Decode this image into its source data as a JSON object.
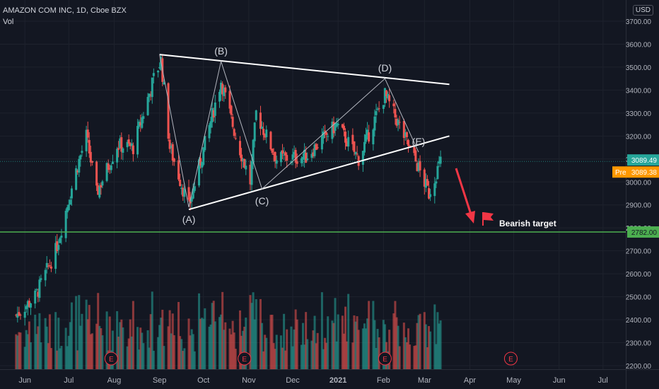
{
  "header": {
    "symbol": "AMAZON COM INC, 1D, Cboe BZX",
    "volume_label": "Vol",
    "currency": "USD"
  },
  "chart_data": {
    "type": "candlestick",
    "title": "AMAZON COM INC, 1D, Cboe BZX",
    "currency": "USD",
    "ylim": [
      2180,
      3760
    ],
    "y_ticks": [
      2200,
      2300,
      2400,
      2500,
      2600,
      2700,
      2800,
      2900,
      3000,
      3100,
      3200,
      3300,
      3400,
      3500,
      3600,
      3700
    ],
    "x_ticks": [
      "Jun",
      "Jul",
      "Aug",
      "Sep",
      "Oct",
      "Nov",
      "Dec",
      "2021",
      "Feb",
      "Mar",
      "Apr",
      "May",
      "Jun",
      "Jul"
    ],
    "grid": true,
    "price_anchors": [
      {
        "date": "2020-05-26",
        "price": 2420
      },
      {
        "date": "2020-06-08",
        "price": 2500
      },
      {
        "date": "2020-06-22",
        "price": 2700
      },
      {
        "date": "2020-07-06",
        "price": 3050
      },
      {
        "date": "2020-07-13",
        "price": 3200
      },
      {
        "date": "2020-07-20",
        "price": 2950
      },
      {
        "date": "2020-08-03",
        "price": 3160
      },
      {
        "date": "2020-08-14",
        "price": 3150
      },
      {
        "date": "2020-08-28",
        "price": 3450
      },
      {
        "date": "2020-09-02",
        "price": 3530
      },
      {
        "date": "2020-09-08",
        "price": 3150
      },
      {
        "date": "2020-09-21",
        "price": 2890
      },
      {
        "date": "2020-10-13",
        "price": 3440
      },
      {
        "date": "2020-10-23",
        "price": 3200
      },
      {
        "date": "2020-11-02",
        "price": 3000
      },
      {
        "date": "2020-11-06",
        "price": 3300
      },
      {
        "date": "2020-11-20",
        "price": 3100
      },
      {
        "date": "2020-12-10",
        "price": 3110
      },
      {
        "date": "2020-12-31",
        "price": 3250
      },
      {
        "date": "2021-01-15",
        "price": 3100
      },
      {
        "date": "2021-02-02",
        "price": 3380
      },
      {
        "date": "2021-02-10",
        "price": 3270
      },
      {
        "date": "2021-02-25",
        "price": 3060
      },
      {
        "date": "2021-03-04",
        "price": 2950
      },
      {
        "date": "2021-03-12",
        "price": 3089.49
      }
    ],
    "volume_ylim": [
      0,
      1
    ],
    "annotations": {
      "wave_points": [
        {
          "label": "(A)",
          "date": "2020-09-21",
          "price": 2890
        },
        {
          "label": "(B)",
          "date": "2020-10-13",
          "price": 3525
        },
        {
          "label": "(C)",
          "date": "2020-11-10",
          "price": 2970
        },
        {
          "label": "(D)",
          "date": "2021-02-02",
          "price": 3450
        },
        {
          "label": "(E)",
          "date": "2021-02-25",
          "price": 3130
        }
      ],
      "trendlines": [
        {
          "from": {
            "date": "2020-09-01",
            "price": 3555
          },
          "to": {
            "date": "2021-03-18",
            "price": 3425
          }
        },
        {
          "from": {
            "date": "2020-09-21",
            "price": 2880
          },
          "to": {
            "date": "2021-03-18",
            "price": 3200
          }
        }
      ],
      "support_line": {
        "price": 2782,
        "label": "2782.00",
        "color": "#4caf50"
      },
      "target_label": "Bearish target",
      "earnings_markers": [
        "2020-07-30",
        "2020-10-29",
        "2021-02-02",
        "2021-04-29"
      ],
      "earnings_marker_text": "E"
    },
    "last_price": {
      "label": "3089.49",
      "color": "#26a69a"
    },
    "premarket": {
      "prefix": "Pre",
      "value": "3089.38",
      "color": "#ff9800"
    },
    "colors": {
      "up": "#26a69a",
      "down": "#ef5350",
      "background": "#131722",
      "grid": "#1e222d"
    }
  }
}
